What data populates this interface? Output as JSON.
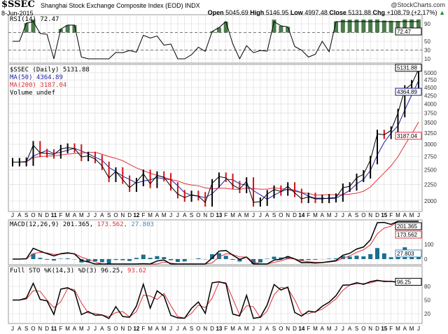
{
  "header": {
    "symbol": "$SSEC",
    "name": "Shanghai Stock Exchange Composite Index (EOD) INDX",
    "date": "8-Jun-2015",
    "brand": "@StockCharts.com",
    "open_label": "Open",
    "open": "5045.69",
    "high_label": "High",
    "high": "5146.95",
    "low_label": "Low",
    "low": "4997.48",
    "close_label": "Close",
    "close": "5131.88",
    "chg_label": "Chg",
    "chg": "+108.79 (+2.17%)"
  },
  "legends": {
    "rsi": "RSI(14) 72.47",
    "price": "$SSEC (Daily) 5131.88",
    "ma50": "MA(50) 4364.89",
    "ma200": "MA(200) 3187.04",
    "volume": "Volume undef",
    "macd_label": "MACD(12,26,9) 201.365,",
    "macd_signal": "173.562,",
    "macd_hist": "27.803",
    "sto_label": "Full STO %K(14,3) %D(3) 96.25,",
    "sto_d": "93.62"
  },
  "colors": {
    "price": "#000000",
    "ma50": "#1f1f9f",
    "ma200": "#e0303a",
    "hist": "#1a6f8f",
    "rsi_fill": "#4a7a4a",
    "grid": "#d8d8d8"
  },
  "chart_data": [
    {
      "type": "line",
      "panel": "price",
      "scale": "log",
      "ylim": [
        1850,
        5300
      ],
      "yticks": [
        2000,
        2250,
        2500,
        2750,
        3000,
        3250,
        3500,
        3750,
        4000,
        4250,
        4500,
        4750,
        5000
      ],
      "x": [
        "2010-07",
        "2010-08",
        "2010-09",
        "2010-10",
        "2010-11",
        "2010-12",
        "2011-01",
        "2011-02",
        "2011-03",
        "2011-04",
        "2011-05",
        "2011-06",
        "2011-07",
        "2011-08",
        "2011-09",
        "2011-10",
        "2011-11",
        "2011-12",
        "2012-01",
        "2012-02",
        "2012-03",
        "2012-04",
        "2012-05",
        "2012-06",
        "2012-07",
        "2012-08",
        "2012-09",
        "2012-10",
        "2012-11",
        "2012-12",
        "2013-01",
        "2013-02",
        "2013-03",
        "2013-04",
        "2013-05",
        "2013-06",
        "2013-07",
        "2013-08",
        "2013-09",
        "2013-10",
        "2013-11",
        "2013-12",
        "2014-01",
        "2014-02",
        "2014-03",
        "2014-04",
        "2014-05",
        "2014-06",
        "2014-07",
        "2014-08",
        "2014-09",
        "2014-10",
        "2014-11",
        "2014-12",
        "2015-01",
        "2015-02",
        "2015-03",
        "2015-04",
        "2015-05",
        "2015-06"
      ],
      "close": [
        2640,
        2640,
        2650,
        2980,
        2820,
        2810,
        2790,
        2900,
        2930,
        2910,
        2740,
        2760,
        2700,
        2570,
        2360,
        2470,
        2330,
        2200,
        2290,
        2430,
        2260,
        2400,
        2370,
        2220,
        2100,
        2050,
        2090,
        2070,
        1980,
        2270,
        2380,
        2360,
        2240,
        2180,
        2300,
        1980,
        1990,
        2100,
        2170,
        2140,
        2220,
        2120,
        2030,
        2060,
        2030,
        2030,
        2040,
        2050,
        2200,
        2220,
        2360,
        2420,
        2680,
        3230,
        3210,
        3310,
        3750,
        4440,
        4610,
        5131.88
      ],
      "last": {
        "price": "5131.88",
        "ma50": "4364.89",
        "ma200": "3187.04"
      }
    },
    {
      "type": "line",
      "panel": "rsi",
      "ylim": [
        0,
        100
      ],
      "yticks": [
        10,
        30,
        50,
        90
      ],
      "levels": [
        30,
        70
      ],
      "last": "72.47"
    },
    {
      "type": "line",
      "panel": "macd",
      "yticks": [
        0,
        100
      ],
      "last": {
        "macd": "201.365",
        "signal": "173.562",
        "hist": "27.803"
      }
    },
    {
      "type": "line",
      "panel": "sto",
      "ylim": [
        0,
        100
      ],
      "yticks": [
        20,
        50,
        80
      ],
      "last": {
        "k": "96.25",
        "d": "93.62"
      }
    }
  ],
  "xaxis": {
    "labels": [
      "J",
      "A",
      "S",
      "O",
      "N",
      "D",
      "11",
      "F",
      "M",
      "A",
      "M",
      "J",
      "J",
      "A",
      "S",
      "O",
      "N",
      "D",
      "12",
      "F",
      "M",
      "A",
      "M",
      "J",
      "J",
      "A",
      "S",
      "O",
      "N",
      "D",
      "13",
      "F",
      "M",
      "A",
      "M",
      "J",
      "J",
      "A",
      "S",
      "O",
      "N",
      "D",
      "14",
      "F",
      "M",
      "A",
      "M",
      "J",
      "J",
      "A",
      "S",
      "O",
      "N",
      "D",
      "15",
      "F",
      "M",
      "A",
      "M",
      "J"
    ]
  }
}
